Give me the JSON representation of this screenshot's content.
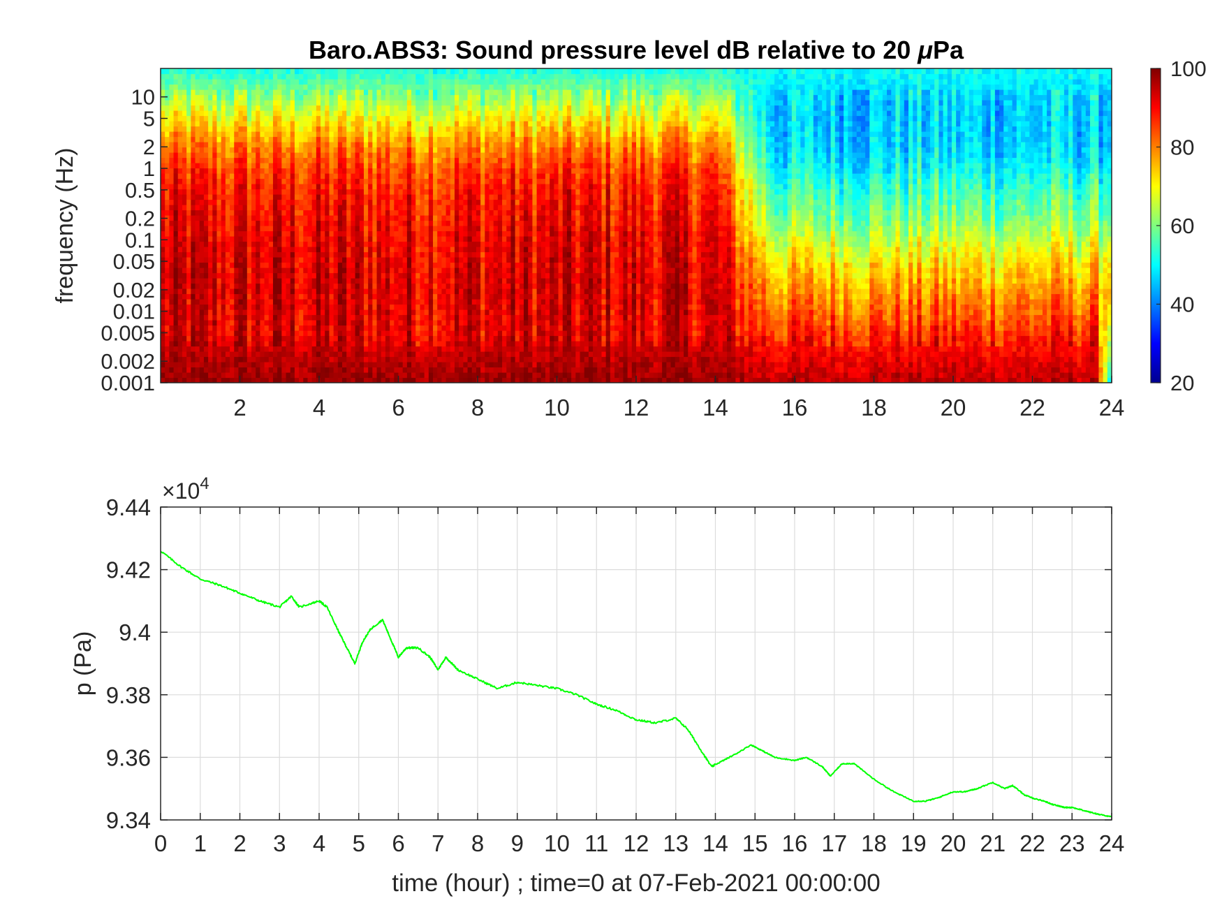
{
  "chart_data": [
    {
      "type": "heatmap",
      "title": "Baro.ABS3: Sound pressure level dB relative to 20 μPa",
      "title_parts": {
        "before": "Baro.ABS3: Sound pressure level dB relative to 20 ",
        "mu": "μ",
        "after": "Pa"
      },
      "xlabel": "",
      "ylabel": "frequency (Hz)",
      "xlim": [
        0,
        24
      ],
      "x_ticks": [
        2,
        4,
        6,
        8,
        10,
        12,
        14,
        16,
        18,
        20,
        22,
        24
      ],
      "yscale": "log",
      "ylim": [
        0.001,
        25
      ],
      "y_ticks": [
        0.001,
        0.002,
        0.005,
        0.01,
        0.02,
        0.05,
        0.1,
        0.2,
        0.5,
        1,
        2,
        5,
        10
      ],
      "y_tick_labels": [
        "0.001",
        "0.002",
        "0.005",
        "0.01",
        "0.02",
        "0.05",
        "0.1",
        "0.2",
        "0.5",
        "1",
        "2",
        "5",
        "10"
      ],
      "colormap": "jet",
      "colorbar": {
        "range": [
          20,
          100
        ],
        "ticks": [
          20,
          40,
          60,
          80,
          100
        ]
      },
      "frequency_profile": {
        "early_hours_0_14": [
          {
            "f": 0.001,
            "db": 98
          },
          {
            "f": 0.002,
            "db": 96
          },
          {
            "f": 0.005,
            "db": 92
          },
          {
            "f": 0.01,
            "db": 92
          },
          {
            "f": 0.02,
            "db": 93
          },
          {
            "f": 0.05,
            "db": 92
          },
          {
            "f": 0.1,
            "db": 91
          },
          {
            "f": 0.2,
            "db": 90
          },
          {
            "f": 0.5,
            "db": 88
          },
          {
            "f": 1,
            "db": 85
          },
          {
            "f": 2,
            "db": 80
          },
          {
            "f": 5,
            "db": 70
          },
          {
            "f": 10,
            "db": 62
          },
          {
            "f": 25,
            "db": 52
          }
        ],
        "quiet_hours_15_24": [
          {
            "f": 0.001,
            "db": 95
          },
          {
            "f": 0.002,
            "db": 92
          },
          {
            "f": 0.005,
            "db": 87
          },
          {
            "f": 0.01,
            "db": 82
          },
          {
            "f": 0.02,
            "db": 78
          },
          {
            "f": 0.05,
            "db": 72
          },
          {
            "f": 0.1,
            "db": 66
          },
          {
            "f": 0.2,
            "db": 60
          },
          {
            "f": 0.5,
            "db": 55
          },
          {
            "f": 1,
            "db": 50
          },
          {
            "f": 2,
            "db": 47
          },
          {
            "f": 5,
            "db": 46
          },
          {
            "f": 10,
            "db": 47
          },
          {
            "f": 25,
            "db": 51
          }
        ]
      }
    },
    {
      "type": "line",
      "title": "",
      "xlabel": "time (hour) ; time=0 at 07-Feb-2021 00:00:00",
      "ylabel": "p (Pa)",
      "xlim": [
        0,
        24
      ],
      "ylim": [
        93400,
        94400
      ],
      "x_ticks": [
        0,
        1,
        2,
        3,
        4,
        5,
        6,
        7,
        8,
        9,
        10,
        11,
        12,
        13,
        14,
        15,
        16,
        17,
        18,
        19,
        20,
        21,
        22,
        23,
        24
      ],
      "y_tick_labels": [
        "9.34",
        "9.36",
        "9.38",
        "9.4",
        "9.42",
        "9.44"
      ],
      "y_ticks": [
        93400,
        93600,
        93800,
        94000,
        94200,
        94400
      ],
      "y_exponent": {
        "base": "×10",
        "power": "4"
      },
      "grid": true,
      "series": [
        {
          "color": "#00ff00",
          "x": [
            0,
            0.5,
            1,
            1.5,
            2,
            2.5,
            3,
            3.3,
            3.5,
            4,
            4.2,
            4.5,
            4.7,
            4.9,
            5.1,
            5.3,
            5.6,
            5.8,
            6,
            6.2,
            6.5,
            6.8,
            7,
            7.2,
            7.5,
            8,
            8.5,
            9,
            9.5,
            10,
            10.5,
            11,
            11.5,
            12,
            12.5,
            13,
            13.3,
            13.6,
            13.9,
            14.2,
            14.5,
            14.9,
            15.2,
            15.5,
            16,
            16.3,
            16.7,
            16.9,
            17.2,
            17.5,
            18,
            18.5,
            19,
            19.3,
            19.6,
            20,
            20.3,
            20.6,
            21,
            21.3,
            21.5,
            21.8,
            22,
            22.3,
            22.5,
            22.8,
            23,
            23.3,
            23.6,
            24
          ],
          "y": [
            94260,
            94210,
            94170,
            94150,
            94125,
            94100,
            94080,
            94115,
            94080,
            94100,
            94080,
            94000,
            93950,
            93900,
            93970,
            94010,
            94040,
            93980,
            93920,
            93950,
            93950,
            93920,
            93880,
            93920,
            93880,
            93850,
            93820,
            93840,
            93830,
            93820,
            93800,
            93770,
            93750,
            93720,
            93710,
            93725,
            93690,
            93630,
            93570,
            93590,
            93610,
            93640,
            93620,
            93600,
            93590,
            93600,
            93570,
            93540,
            93580,
            93580,
            93530,
            93490,
            93460,
            93460,
            93470,
            93490,
            93490,
            93500,
            93520,
            93500,
            93510,
            93480,
            93470,
            93460,
            93450,
            93440,
            93440,
            93430,
            93420,
            93410
          ]
        }
      ]
    }
  ]
}
